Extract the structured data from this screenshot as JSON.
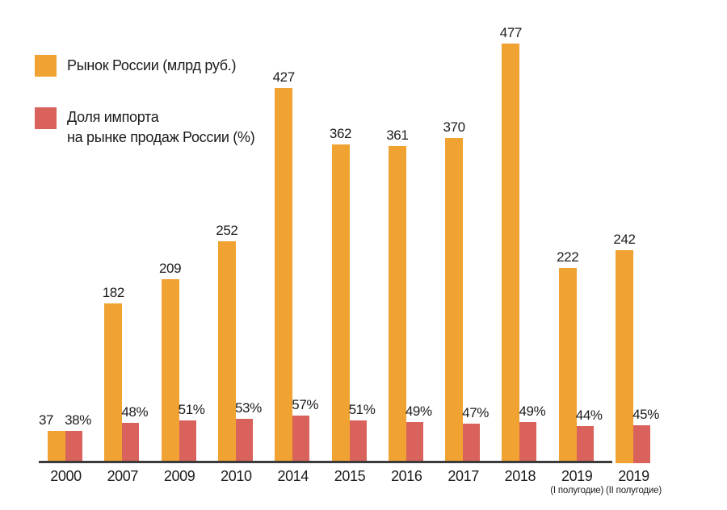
{
  "colors": {
    "market_bar": "#F0A232",
    "import_bar": "#D9625C",
    "axis_line": "#3b3b3b",
    "text": "#1c1c1c",
    "background": "#ffffff"
  },
  "legend": {
    "items": [
      {
        "label": "Рынок России (млрд руб.)",
        "color": "#F0A232"
      },
      {
        "line1": "Доля импорта",
        "line2": "на рынке продаж России (%)",
        "color": "#D9625C"
      }
    ]
  },
  "chart_data": {
    "type": "bar",
    "title": "",
    "xlabel": "",
    "ylabel": "",
    "grid": false,
    "value_axis_visible": false,
    "legend_position": "top-left",
    "categories": [
      {
        "label": "2000",
        "note": ""
      },
      {
        "label": "2007",
        "note": ""
      },
      {
        "label": "2009",
        "note": ""
      },
      {
        "label": "2010",
        "note": ""
      },
      {
        "label": "2014",
        "note": ""
      },
      {
        "label": "2015",
        "note": ""
      },
      {
        "label": "2016",
        "note": ""
      },
      {
        "label": "2017",
        "note": ""
      },
      {
        "label": "2018",
        "note": ""
      },
      {
        "label": "2019",
        "note": "(I полугодие)"
      },
      {
        "label": "2019",
        "note": "(II полугодие)"
      }
    ],
    "series": [
      {
        "name": "Рынок России (млрд руб.)",
        "color": "#F0A232",
        "values": [
          37,
          182,
          209,
          252,
          427,
          362,
          361,
          370,
          477,
          222,
          242
        ],
        "label_suffix": ""
      },
      {
        "name": "Доля импорта на рынке продаж России (%)",
        "color": "#D9625C",
        "values": [
          38,
          48,
          51,
          53,
          57,
          51,
          49,
          47,
          49,
          44,
          45
        ],
        "label_suffix": "%"
      }
    ]
  }
}
